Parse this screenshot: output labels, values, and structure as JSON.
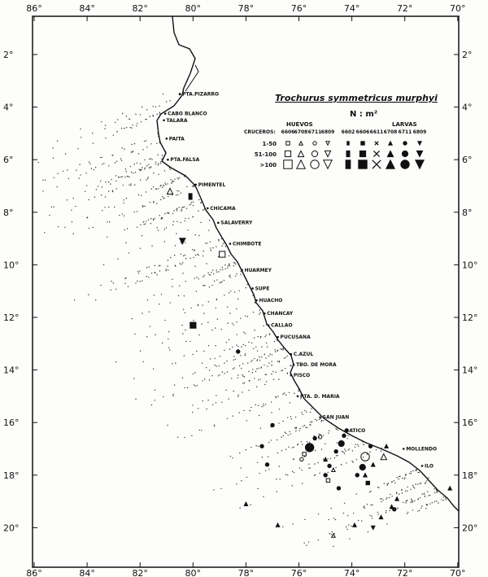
{
  "map": {
    "title": "Trochurus symmetricus murphyi",
    "unit": "N : m²",
    "lon_ticks": [
      "86°",
      "84°",
      "82°",
      "80°",
      "78°",
      "76°",
      "74°",
      "72°",
      "70°"
    ],
    "lat_ticks": [
      "2°",
      "4°",
      "6°",
      "8°",
      "10°",
      "12°",
      "14°",
      "16°",
      "18°",
      "20°"
    ],
    "places": [
      {
        "name": "PTA.PIZARRO",
        "lon": 80.5,
        "lat": 3.5
      },
      {
        "name": "CABO BLANCO",
        "lon": 81.05,
        "lat": 4.25
      },
      {
        "name": "TALARA",
        "lon": 81.1,
        "lat": 4.5
      },
      {
        "name": "PAITA",
        "lon": 81.0,
        "lat": 5.2
      },
      {
        "name": "PTA.FALSA",
        "lon": 80.95,
        "lat": 6.0
      },
      {
        "name": "PIMENTEL",
        "lon": 79.9,
        "lat": 6.95
      },
      {
        "name": "CHICAMA",
        "lon": 79.45,
        "lat": 7.85
      },
      {
        "name": "SALAVERRY",
        "lon": 79.05,
        "lat": 8.4
      },
      {
        "name": "CHIMBOTE",
        "lon": 78.6,
        "lat": 9.2
      },
      {
        "name": "HUARMEY",
        "lon": 78.15,
        "lat": 10.2
      },
      {
        "name": "SUPE",
        "lon": 77.75,
        "lat": 10.9
      },
      {
        "name": "HUACHO",
        "lon": 77.6,
        "lat": 11.35
      },
      {
        "name": "CHANCAY",
        "lon": 77.3,
        "lat": 11.85
      },
      {
        "name": "CALLAO",
        "lon": 77.15,
        "lat": 12.3
      },
      {
        "name": "PUCUSANA",
        "lon": 76.8,
        "lat": 12.75
      },
      {
        "name": "C.AZUL",
        "lon": 76.3,
        "lat": 13.4
      },
      {
        "name": "TBO. DE MORA",
        "lon": 76.2,
        "lat": 13.8
      },
      {
        "name": "PISCO",
        "lon": 76.3,
        "lat": 14.2
      },
      {
        "name": "PTA. D. MARIA",
        "lon": 76.05,
        "lat": 15.0
      },
      {
        "name": "SAN JUAN",
        "lon": 75.2,
        "lat": 15.8
      },
      {
        "name": "ATICO",
        "lon": 74.2,
        "lat": 16.3
      },
      {
        "name": "MOLLENDO",
        "lon": 72.05,
        "lat": 17.0
      },
      {
        "name": "ILO",
        "lon": 71.35,
        "lat": 17.65
      }
    ]
  },
  "legend": {
    "huevos_label": "HUEVOS",
    "larvas_label": "LARVAS",
    "cruceros_label": "CRUCEROS:",
    "huevos_cruises": [
      "6606",
      "6708",
      "6711",
      "6809"
    ],
    "larvas_cruises": [
      "6602",
      "6606",
      "6611",
      "6708",
      "6711",
      "6809"
    ],
    "classes": [
      "1-50",
      "51-100",
      ">100"
    ],
    "huevos_symbols": [
      "open-square",
      "open-triangle",
      "open-circle",
      "open-down-triangle"
    ],
    "larvas_symbols": [
      "filled-rect",
      "filled-square",
      "cross",
      "filled-triangle",
      "filled-circle",
      "filled-down-triangle"
    ]
  },
  "observations": [
    {
      "symbol": "open-triangle",
      "size": 2,
      "lon": 80.87,
      "lat": 7.2
    },
    {
      "symbol": "filled-rect",
      "size": 2,
      "lon": 80.1,
      "lat": 7.4
    },
    {
      "symbol": "filled-down-triangle",
      "size": 2,
      "lon": 80.4,
      "lat": 9.1
    },
    {
      "symbol": "open-square",
      "size": 2,
      "lon": 78.9,
      "lat": 9.6
    },
    {
      "symbol": "filled-square",
      "size": 2,
      "lon": 80.0,
      "lat": 12.3
    },
    {
      "symbol": "filled-circle",
      "size": 1,
      "lon": 78.3,
      "lat": 13.3
    },
    {
      "symbol": "filled-circle",
      "size": 1,
      "lon": 77.0,
      "lat": 16.1
    },
    {
      "symbol": "filled-circle",
      "size": 1,
      "lon": 77.4,
      "lat": 16.9
    },
    {
      "symbol": "filled-circle",
      "size": 1,
      "lon": 77.2,
      "lat": 17.6
    },
    {
      "symbol": "filled-circle",
      "size": 3,
      "lon": 75.6,
      "lat": 16.95
    },
    {
      "symbol": "filled-circle",
      "size": 1,
      "lon": 75.4,
      "lat": 16.6
    },
    {
      "symbol": "open-circle",
      "size": 1,
      "lon": 75.2,
      "lat": 16.55
    },
    {
      "symbol": "open-square",
      "size": 1,
      "lon": 75.8,
      "lat": 17.2
    },
    {
      "symbol": "open-circle",
      "size": 1,
      "lon": 75.9,
      "lat": 17.4
    },
    {
      "symbol": "filled-triangle",
      "size": 1,
      "lon": 75.0,
      "lat": 17.4
    },
    {
      "symbol": "filled-circle",
      "size": 1,
      "lon": 74.85,
      "lat": 17.65
    },
    {
      "symbol": "open-triangle",
      "size": 1,
      "lon": 74.7,
      "lat": 17.8
    },
    {
      "symbol": "filled-circle",
      "size": 1,
      "lon": 75.0,
      "lat": 18.0
    },
    {
      "symbol": "open-square",
      "size": 1,
      "lon": 74.9,
      "lat": 18.2
    },
    {
      "symbol": "filled-circle",
      "size": 1,
      "lon": 74.6,
      "lat": 17.1
    },
    {
      "symbol": "filled-circle",
      "size": 2,
      "lon": 74.4,
      "lat": 16.8
    },
    {
      "symbol": "filled-circle",
      "size": 1,
      "lon": 74.3,
      "lat": 16.5
    },
    {
      "symbol": "filled-circle",
      "size": 1,
      "lon": 74.2,
      "lat": 16.3
    },
    {
      "symbol": "filled-circle",
      "size": 1,
      "lon": 74.5,
      "lat": 18.5
    },
    {
      "symbol": "filled-circle",
      "size": 2,
      "lon": 73.6,
      "lat": 17.7
    },
    {
      "symbol": "open-circle",
      "size": 3,
      "lon": 73.5,
      "lat": 17.3
    },
    {
      "symbol": "filled-circle",
      "size": 1,
      "lon": 73.3,
      "lat": 16.9
    },
    {
      "symbol": "open-triangle",
      "size": 2,
      "lon": 72.8,
      "lat": 17.3
    },
    {
      "symbol": "filled-triangle",
      "size": 1,
      "lon": 72.7,
      "lat": 16.9
    },
    {
      "symbol": "filled-triangle",
      "size": 1,
      "lon": 73.2,
      "lat": 17.6
    },
    {
      "symbol": "filled-triangle",
      "size": 1,
      "lon": 73.5,
      "lat": 18.0
    },
    {
      "symbol": "filled-circle",
      "size": 1,
      "lon": 73.8,
      "lat": 18.0
    },
    {
      "symbol": "filled-square",
      "size": 1,
      "lon": 73.4,
      "lat": 18.3
    },
    {
      "symbol": "filled-triangle",
      "size": 1,
      "lon": 72.3,
      "lat": 18.9
    },
    {
      "symbol": "filled-triangle",
      "size": 1,
      "lon": 72.5,
      "lat": 19.2
    },
    {
      "symbol": "filled-circle",
      "size": 1,
      "lon": 72.4,
      "lat": 19.3
    },
    {
      "symbol": "filled-triangle",
      "size": 1,
      "lon": 72.9,
      "lat": 19.6
    },
    {
      "symbol": "filled-down-triangle",
      "size": 1,
      "lon": 73.2,
      "lat": 20.0
    },
    {
      "symbol": "filled-triangle",
      "size": 1,
      "lon": 78.0,
      "lat": 19.1
    },
    {
      "symbol": "filled-triangle",
      "size": 1,
      "lon": 76.8,
      "lat": 19.9
    },
    {
      "symbol": "filled-triangle",
      "size": 1,
      "lon": 73.9,
      "lat": 19.9
    },
    {
      "symbol": "open-triangle",
      "size": 1,
      "lon": 74.7,
      "lat": 20.3
    },
    {
      "symbol": "filled-triangle",
      "size": 1,
      "lon": 70.3,
      "lat": 18.5
    }
  ]
}
